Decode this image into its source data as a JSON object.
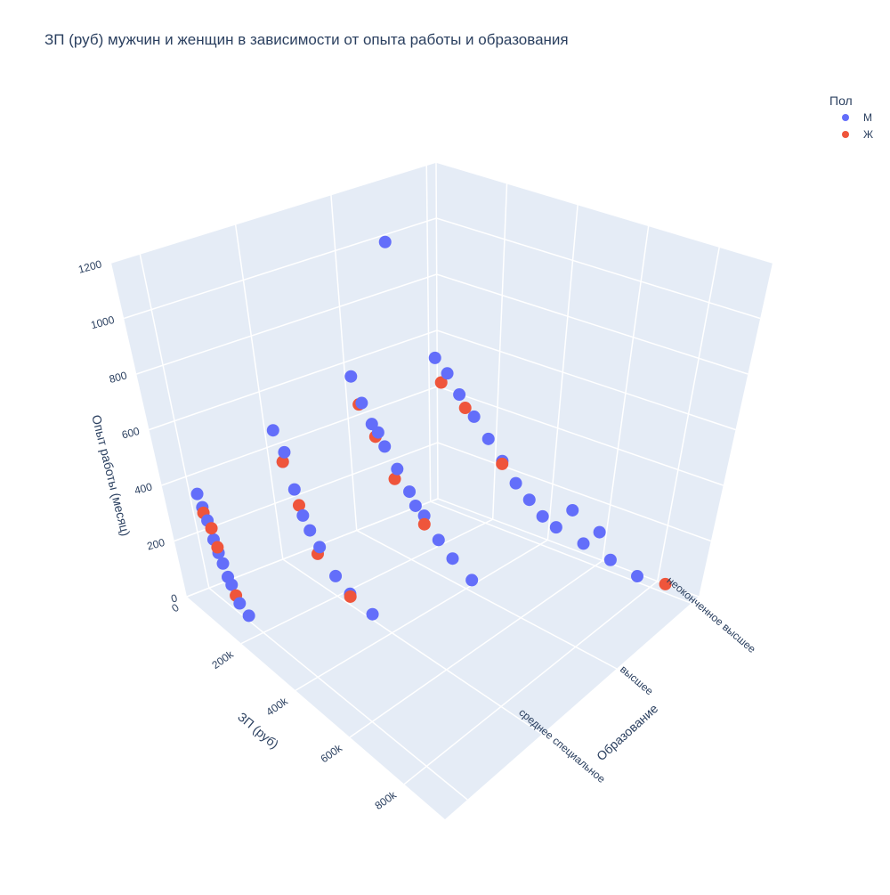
{
  "chart_data": {
    "type": "scatter3d",
    "title": "ЗП (руб) мужчин и женщин в зависимости от опыта работы и образования",
    "legend_title": "Пол",
    "x_title": "ЗП (руб)",
    "y_title": "Образование",
    "z_title": "Опыт работы (месяц)",
    "xlim": [
      0,
      950000
    ],
    "xticks": [
      0,
      {
        "value": 200000,
        "label": "200k"
      },
      {
        "value": 400000,
        "label": "400k"
      },
      {
        "value": 600000,
        "label": "600k"
      },
      {
        "value": 800000,
        "label": "800k"
      }
    ],
    "ylim": [
      -0.3,
      3.1
    ],
    "y_categories": [
      null,
      "среднее специальное",
      "высшее",
      "неоконченное высшее"
    ],
    "zlim": [
      0,
      1200
    ],
    "zticks": [
      0,
      200,
      400,
      600,
      800,
      1000,
      1200
    ],
    "series": [
      {
        "name": "М",
        "color": "#636efa",
        "x": [
          30000,
          50000,
          60000,
          80000,
          100000,
          120000,
          40000,
          70000,
          90000,
          150000,
          30000,
          50000,
          80000,
          100000,
          150000,
          200000,
          60000,
          120000,
          250000,
          330000,
          20000,
          50000,
          80000,
          120000,
          160000,
          200000,
          250000,
          300000,
          350000,
          150000,
          100000,
          220000,
          420000,
          20000,
          60000,
          100000,
          150000,
          200000,
          250000,
          300000,
          350000,
          400000,
          450000,
          550000,
          650000,
          750000,
          600000,
          500000
        ],
        "y": [
          0,
          0,
          0,
          0,
          0,
          0,
          0,
          0,
          0,
          0,
          1,
          1,
          1,
          1,
          1,
          1,
          1,
          1,
          1,
          1,
          2,
          2,
          2,
          2,
          2,
          2,
          2,
          2,
          2,
          2,
          2,
          2,
          2,
          3,
          3,
          3,
          3,
          3,
          3,
          3,
          3,
          3,
          3,
          3,
          3,
          3,
          3,
          3
        ],
        "z": [
          360,
          280,
          220,
          150,
          90,
          40,
          320,
          180,
          110,
          20,
          480,
          380,
          300,
          220,
          140,
          70,
          420,
          180,
          40,
          20,
          560,
          480,
          420,
          360,
          300,
          240,
          180,
          120,
          80,
          1100,
          400,
          200,
          40,
          520,
          480,
          420,
          360,
          300,
          240,
          180,
          140,
          100,
          80,
          60,
          40,
          20,
          120,
          160
        ]
      },
      {
        "name": "Ж",
        "color": "#EF553B",
        "x": [
          40000,
          70000,
          110000,
          60000,
          50000,
          90000,
          140000,
          250000,
          40000,
          90000,
          150000,
          250000,
          40000,
          120000,
          250000,
          850000
        ],
        "y": [
          0,
          0,
          0,
          0,
          1,
          1,
          1,
          1,
          2,
          2,
          2,
          2,
          3,
          3,
          3,
          3
        ],
        "z": [
          300,
          200,
          60,
          260,
          380,
          250,
          110,
          30,
          470,
          380,
          260,
          150,
          440,
          380,
          230,
          30
        ]
      }
    ]
  }
}
